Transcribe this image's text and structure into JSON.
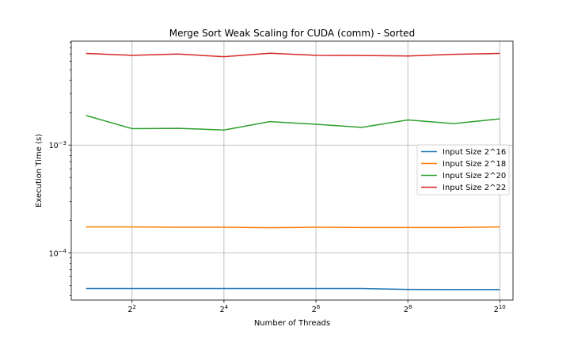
{
  "chart_data": {
    "type": "line",
    "title": "Merge Sort Weak Scaling for CUDA (comm) - Sorted",
    "xlabel": "Number of Threads",
    "ylabel": "Execution Time (s)",
    "x_scale": "log2",
    "y_scale": "log10",
    "x": [
      2,
      4,
      8,
      16,
      32,
      64,
      128,
      256,
      512,
      1024
    ],
    "xlim": [
      1.6,
      1250
    ],
    "ylim": [
      3.65e-05,
      0.0092
    ],
    "x_ticks": [
      {
        "value": 4,
        "base": "2",
        "exp": "2"
      },
      {
        "value": 16,
        "base": "2",
        "exp": "4"
      },
      {
        "value": 64,
        "base": "2",
        "exp": "6"
      },
      {
        "value": 256,
        "base": "2",
        "exp": "8"
      },
      {
        "value": 1024,
        "base": "2",
        "exp": "10"
      }
    ],
    "y_ticks": [
      {
        "value": 0.0001,
        "base": "10",
        "exp": "−4"
      },
      {
        "value": 0.001,
        "base": "10",
        "exp": "−3"
      }
    ],
    "grid": true,
    "legend_position": "center-right",
    "series": [
      {
        "name": "Input Size 2^16",
        "color": "#1f77b4",
        "values": [
          4.66e-05,
          4.66e-05,
          4.66e-05,
          4.66e-05,
          4.66e-05,
          4.66e-05,
          4.66e-05,
          4.58e-05,
          4.57e-05,
          4.57e-05
        ]
      },
      {
        "name": "Input Size 2^18",
        "color": "#ff7f0e",
        "values": [
          0.000174,
          0.000174,
          0.000173,
          0.000173,
          0.000171,
          0.000173,
          0.000172,
          0.000172,
          0.000172,
          0.000174
        ]
      },
      {
        "name": "Input Size 2^20",
        "color": "#2ca02c",
        "values": [
          0.00188,
          0.00142,
          0.00143,
          0.00138,
          0.00165,
          0.00156,
          0.00146,
          0.00171,
          0.00158,
          0.00175
        ]
      },
      {
        "name": "Input Size 2^22",
        "color": "#d62728",
        "values": [
          0.00708,
          0.0068,
          0.00699,
          0.0066,
          0.00711,
          0.0068,
          0.00677,
          0.0067,
          0.00695,
          0.00708
        ]
      }
    ]
  }
}
